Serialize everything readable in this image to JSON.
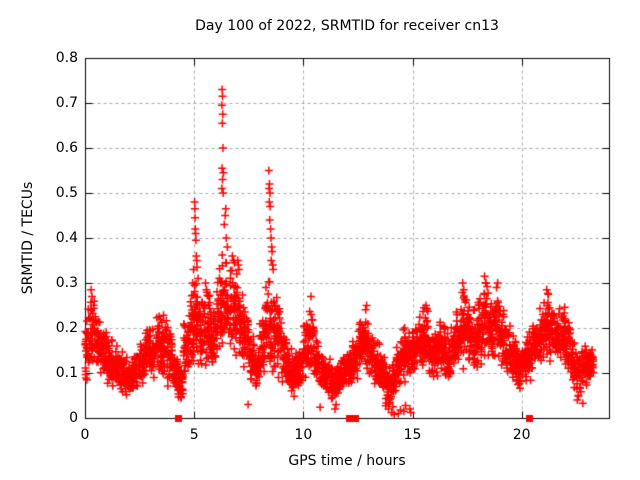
{
  "chart_data": {
    "type": "scatter",
    "title": "Day 100 of 2022, SRMTID for receiver cn13",
    "xlabel": "GPS time / hours",
    "ylabel": "SRMTID / TECUs",
    "legend": "none",
    "grid": true,
    "marker": "plus",
    "marker_color": "#ff0000",
    "grid_color": "#a8a8a8",
    "axis_color": "#000000",
    "xlim": [
      0,
      24
    ],
    "ylim": [
      0,
      0.8
    ],
    "x_ticks": [
      0,
      5,
      10,
      15,
      20
    ],
    "x_tick_labels": [
      "0",
      "5",
      "10",
      "15",
      "20"
    ],
    "y_ticks": [
      0,
      0.1,
      0.2,
      0.3,
      0.4,
      0.5,
      0.6,
      0.7,
      0.8
    ],
    "y_tick_labels": [
      "0",
      "0.1",
      "0.2",
      "0.3",
      "0.4",
      "0.5",
      "0.6",
      "0.7",
      "0.8"
    ],
    "points_per_hour": 130,
    "cloud_bins": [
      [
        0.0,
        0.25,
        0.07,
        0.27
      ],
      [
        0.25,
        0.5,
        0.1,
        0.28
      ],
      [
        0.5,
        0.75,
        0.09,
        0.25
      ],
      [
        0.75,
        1.0,
        0.08,
        0.22
      ],
      [
        1.0,
        1.25,
        0.07,
        0.19
      ],
      [
        1.25,
        1.5,
        0.06,
        0.17
      ],
      [
        1.5,
        1.75,
        0.05,
        0.16
      ],
      [
        1.75,
        2.0,
        0.04,
        0.15
      ],
      [
        2.0,
        2.25,
        0.04,
        0.14
      ],
      [
        2.25,
        2.5,
        0.05,
        0.16
      ],
      [
        2.5,
        2.75,
        0.07,
        0.18
      ],
      [
        2.75,
        3.0,
        0.08,
        0.22
      ],
      [
        3.0,
        3.25,
        0.08,
        0.2
      ],
      [
        3.25,
        3.5,
        0.09,
        0.24
      ],
      [
        3.5,
        3.75,
        0.08,
        0.25
      ],
      [
        3.75,
        4.0,
        0.07,
        0.22
      ],
      [
        4.0,
        4.25,
        0.04,
        0.15
      ],
      [
        4.25,
        4.5,
        0.03,
        0.12
      ],
      [
        4.5,
        4.75,
        0.07,
        0.22
      ],
      [
        4.75,
        5.0,
        0.1,
        0.3
      ],
      [
        5.0,
        5.25,
        0.12,
        0.32
      ],
      [
        5.25,
        5.5,
        0.1,
        0.28
      ],
      [
        5.5,
        5.75,
        0.11,
        0.3
      ],
      [
        5.75,
        6.0,
        0.1,
        0.26
      ],
      [
        6.0,
        6.25,
        0.12,
        0.35
      ],
      [
        6.25,
        6.5,
        0.13,
        0.38
      ],
      [
        6.5,
        6.75,
        0.12,
        0.36
      ],
      [
        6.75,
        7.0,
        0.12,
        0.33
      ],
      [
        7.0,
        7.25,
        0.1,
        0.32
      ],
      [
        7.25,
        7.5,
        0.1,
        0.27
      ],
      [
        7.5,
        7.75,
        0.08,
        0.2
      ],
      [
        7.75,
        8.0,
        0.06,
        0.16
      ],
      [
        8.0,
        8.25,
        0.07,
        0.24
      ],
      [
        8.25,
        8.5,
        0.1,
        0.33
      ],
      [
        8.5,
        8.75,
        0.09,
        0.31
      ],
      [
        8.75,
        9.0,
        0.08,
        0.28
      ],
      [
        9.0,
        9.25,
        0.06,
        0.2
      ],
      [
        9.25,
        9.5,
        0.05,
        0.16
      ],
      [
        9.5,
        9.75,
        0.04,
        0.15
      ],
      [
        9.75,
        10.0,
        0.06,
        0.17
      ],
      [
        10.0,
        10.25,
        0.08,
        0.22
      ],
      [
        10.25,
        10.5,
        0.09,
        0.26
      ],
      [
        10.5,
        10.75,
        0.07,
        0.18
      ],
      [
        10.75,
        11.0,
        0.06,
        0.15
      ],
      [
        11.0,
        11.25,
        0.05,
        0.14
      ],
      [
        11.25,
        11.5,
        0.02,
        0.12
      ],
      [
        11.5,
        11.75,
        0.04,
        0.13
      ],
      [
        11.75,
        12.0,
        0.06,
        0.15
      ],
      [
        12.0,
        12.25,
        0.07,
        0.16
      ],
      [
        12.25,
        12.5,
        0.08,
        0.18
      ],
      [
        12.5,
        12.75,
        0.1,
        0.22
      ],
      [
        12.75,
        13.0,
        0.1,
        0.25
      ],
      [
        13.0,
        13.25,
        0.08,
        0.2
      ],
      [
        13.25,
        13.5,
        0.06,
        0.17
      ],
      [
        13.5,
        13.75,
        0.05,
        0.15
      ],
      [
        13.75,
        14.0,
        0.02,
        0.12
      ],
      [
        14.0,
        14.25,
        0.03,
        0.13
      ],
      [
        14.25,
        14.5,
        0.06,
        0.17
      ],
      [
        14.5,
        14.75,
        0.08,
        0.2
      ],
      [
        14.75,
        15.0,
        0.08,
        0.21
      ],
      [
        15.0,
        15.25,
        0.09,
        0.22
      ],
      [
        15.25,
        15.5,
        0.1,
        0.25
      ],
      [
        15.5,
        15.75,
        0.1,
        0.26
      ],
      [
        15.75,
        16.0,
        0.08,
        0.2
      ],
      [
        16.0,
        16.25,
        0.08,
        0.21
      ],
      [
        16.25,
        16.5,
        0.09,
        0.23
      ],
      [
        16.5,
        16.75,
        0.08,
        0.2
      ],
      [
        16.75,
        17.0,
        0.09,
        0.22
      ],
      [
        17.0,
        17.25,
        0.1,
        0.26
      ],
      [
        17.25,
        17.5,
        0.1,
        0.3
      ],
      [
        17.5,
        17.75,
        0.1,
        0.28
      ],
      [
        17.75,
        18.0,
        0.09,
        0.24
      ],
      [
        18.0,
        18.25,
        0.1,
        0.3
      ],
      [
        18.25,
        18.5,
        0.12,
        0.32
      ],
      [
        18.5,
        18.75,
        0.1,
        0.28
      ],
      [
        18.75,
        19.0,
        0.12,
        0.3
      ],
      [
        19.0,
        19.25,
        0.1,
        0.26
      ],
      [
        19.25,
        19.5,
        0.08,
        0.22
      ],
      [
        19.5,
        19.75,
        0.07,
        0.2
      ],
      [
        19.75,
        20.0,
        0.05,
        0.16
      ],
      [
        20.0,
        20.25,
        0.07,
        0.18
      ],
      [
        20.25,
        20.5,
        0.08,
        0.2
      ],
      [
        20.5,
        20.75,
        0.1,
        0.24
      ],
      [
        20.75,
        21.0,
        0.12,
        0.26
      ],
      [
        21.0,
        21.25,
        0.12,
        0.28
      ],
      [
        21.25,
        21.5,
        0.12,
        0.27
      ],
      [
        21.5,
        21.75,
        0.12,
        0.26
      ],
      [
        21.75,
        22.0,
        0.1,
        0.27
      ],
      [
        22.0,
        22.25,
        0.1,
        0.24
      ],
      [
        22.25,
        22.5,
        0.06,
        0.18
      ],
      [
        22.5,
        22.75,
        0.04,
        0.15
      ],
      [
        22.75,
        23.0,
        0.05,
        0.18
      ],
      [
        23.0,
        23.3,
        0.08,
        0.16
      ]
    ],
    "high_outliers": [
      [
        0.28,
        0.285
      ],
      [
        0.32,
        0.27
      ],
      [
        4.93,
        0.3
      ],
      [
        4.97,
        0.33
      ],
      [
        5.02,
        0.48
      ],
      [
        5.03,
        0.465
      ],
      [
        5.04,
        0.445
      ],
      [
        5.05,
        0.42
      ],
      [
        5.07,
        0.41
      ],
      [
        5.08,
        0.395
      ],
      [
        5.1,
        0.36
      ],
      [
        5.12,
        0.35
      ],
      [
        5.13,
        0.335
      ],
      [
        5.18,
        0.31
      ],
      [
        5.52,
        0.3
      ],
      [
        5.56,
        0.285
      ],
      [
        6.27,
        0.695
      ],
      [
        6.27,
        0.51
      ],
      [
        6.28,
        0.73
      ],
      [
        6.28,
        0.555
      ],
      [
        6.29,
        0.655
      ],
      [
        6.3,
        0.715
      ],
      [
        6.3,
        0.53
      ],
      [
        6.31,
        0.675
      ],
      [
        6.32,
        0.6
      ],
      [
        6.33,
        0.5
      ],
      [
        6.34,
        0.545
      ],
      [
        6.38,
        0.43
      ],
      [
        6.42,
        0.45
      ],
      [
        6.45,
        0.465
      ],
      [
        6.47,
        0.4
      ],
      [
        6.52,
        0.38
      ],
      [
        6.75,
        0.36
      ],
      [
        6.8,
        0.35
      ],
      [
        6.85,
        0.345
      ],
      [
        6.95,
        0.32
      ],
      [
        7.0,
        0.35
      ],
      [
        7.02,
        0.34
      ],
      [
        7.05,
        0.33
      ],
      [
        8.42,
        0.55
      ],
      [
        8.43,
        0.51
      ],
      [
        8.44,
        0.48
      ],
      [
        8.45,
        0.52
      ],
      [
        8.46,
        0.44
      ],
      [
        8.47,
        0.5
      ],
      [
        8.48,
        0.47
      ],
      [
        8.5,
        0.42
      ],
      [
        8.52,
        0.4
      ],
      [
        8.53,
        0.35
      ],
      [
        8.55,
        0.38
      ],
      [
        8.57,
        0.37
      ],
      [
        8.6,
        0.34
      ],
      [
        8.62,
        0.33
      ],
      [
        10.35,
        0.27
      ],
      [
        12.9,
        0.25
      ],
      [
        15.62,
        0.25
      ],
      [
        17.3,
        0.3
      ],
      [
        17.35,
        0.285
      ],
      [
        18.3,
        0.315
      ],
      [
        18.36,
        0.3
      ],
      [
        18.85,
        0.29
      ],
      [
        18.9,
        0.3
      ],
      [
        21.15,
        0.285
      ],
      [
        21.22,
        0.275
      ]
    ],
    "low_outliers": [
      [
        7.47,
        0.03
      ],
      [
        10.77,
        0.024
      ],
      [
        11.45,
        0.02
      ],
      [
        11.5,
        0.03
      ],
      [
        13.9,
        0.02
      ],
      [
        13.95,
        0.035
      ],
      [
        14.05,
        0.012
      ],
      [
        14.1,
        0.025
      ],
      [
        14.16,
        0.008
      ],
      [
        14.35,
        0.01
      ],
      [
        14.45,
        0.018
      ],
      [
        14.6,
        0.015
      ],
      [
        14.68,
        0.028
      ],
      [
        14.88,
        0.02
      ],
      [
        14.92,
        0.012
      ],
      [
        22.55,
        0.04
      ],
      [
        22.6,
        0.05
      ],
      [
        22.8,
        0.033
      ]
    ],
    "zero_markers": [
      4.26,
      12.08,
      12.36,
      20.32
    ]
  }
}
